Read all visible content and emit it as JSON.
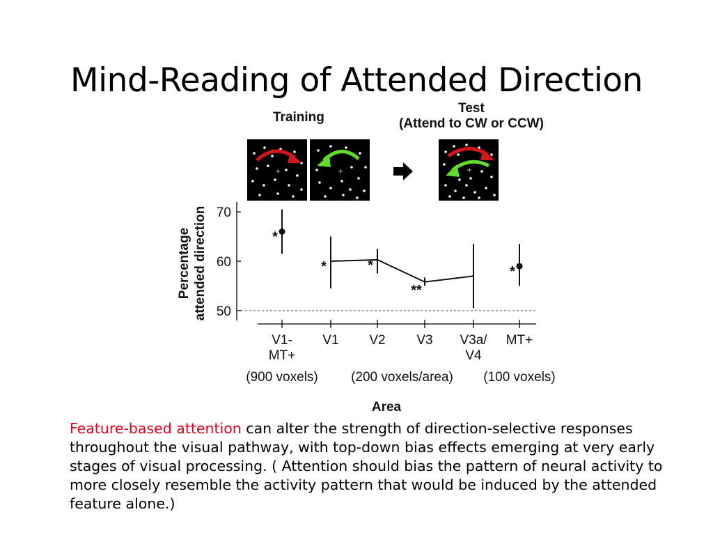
{
  "slide": {
    "title": "Mind-Reading of Attended Direction",
    "caption_highlight": "Feature-based attention",
    "caption_rest": " can alter the strength of direction-selective responses throughout the visual pathway, with top-down bias effects emerging at very early stages of visual processing. ( Attention should bias the pattern of neural activity to more closely resemble the activity pattern that would be induced by the attended feature alone.)"
  },
  "figure": {
    "training_label": "Training",
    "test_label_line1": "Test",
    "test_label_line2": "(Attend to CW or CCW)",
    "colors": {
      "cw_arrow": "#d2171c",
      "ccw_arrow": "#5fdc2b",
      "panel_bg": "#000000",
      "dots": "#ffffff"
    },
    "arrow_icon": "right-arrow-icon"
  },
  "chart_data": {
    "type": "scatter",
    "xlabel": "Area",
    "ylabel_line1": "Percentage",
    "ylabel_line2": "attended direction",
    "ylim": [
      48,
      72
    ],
    "yticks": [
      50,
      60,
      70
    ],
    "chance_level": 50,
    "categories": [
      "V1-\nMT+",
      "V1",
      "V2",
      "V3",
      "V3a/\nV4",
      "MT+"
    ],
    "points": [
      {
        "area": "V1-MT+",
        "value": 66,
        "err_low": 61.5,
        "err_high": 70.5,
        "marker": true,
        "sig": "*"
      },
      {
        "area": "V1",
        "value": 60,
        "err_low": 54.5,
        "err_high": 65,
        "marker": false,
        "sig": "*"
      },
      {
        "area": "V2",
        "value": 60.3,
        "err_low": 57.5,
        "err_high": 62.5,
        "marker": false,
        "sig": "*"
      },
      {
        "area": "V3",
        "value": 55.8,
        "err_low": 55,
        "err_high": 56.7,
        "marker": false,
        "sig": "**"
      },
      {
        "area": "V3a/V4",
        "value": 57,
        "err_low": 50.5,
        "err_high": 63.5,
        "marker": false,
        "sig": ""
      },
      {
        "area": "MT+",
        "value": 59,
        "err_low": 55,
        "err_high": 63.5,
        "marker": true,
        "sig": "*"
      }
    ],
    "connected": [
      "V1",
      "V2",
      "V3",
      "V3a/V4"
    ],
    "groups": [
      {
        "label": "(900 voxels)",
        "from": 0,
        "to": 0
      },
      {
        "label": "(200 voxels/area)",
        "from": 1,
        "to": 4
      },
      {
        "label": "(100 voxels)",
        "from": 5,
        "to": 5
      }
    ]
  }
}
